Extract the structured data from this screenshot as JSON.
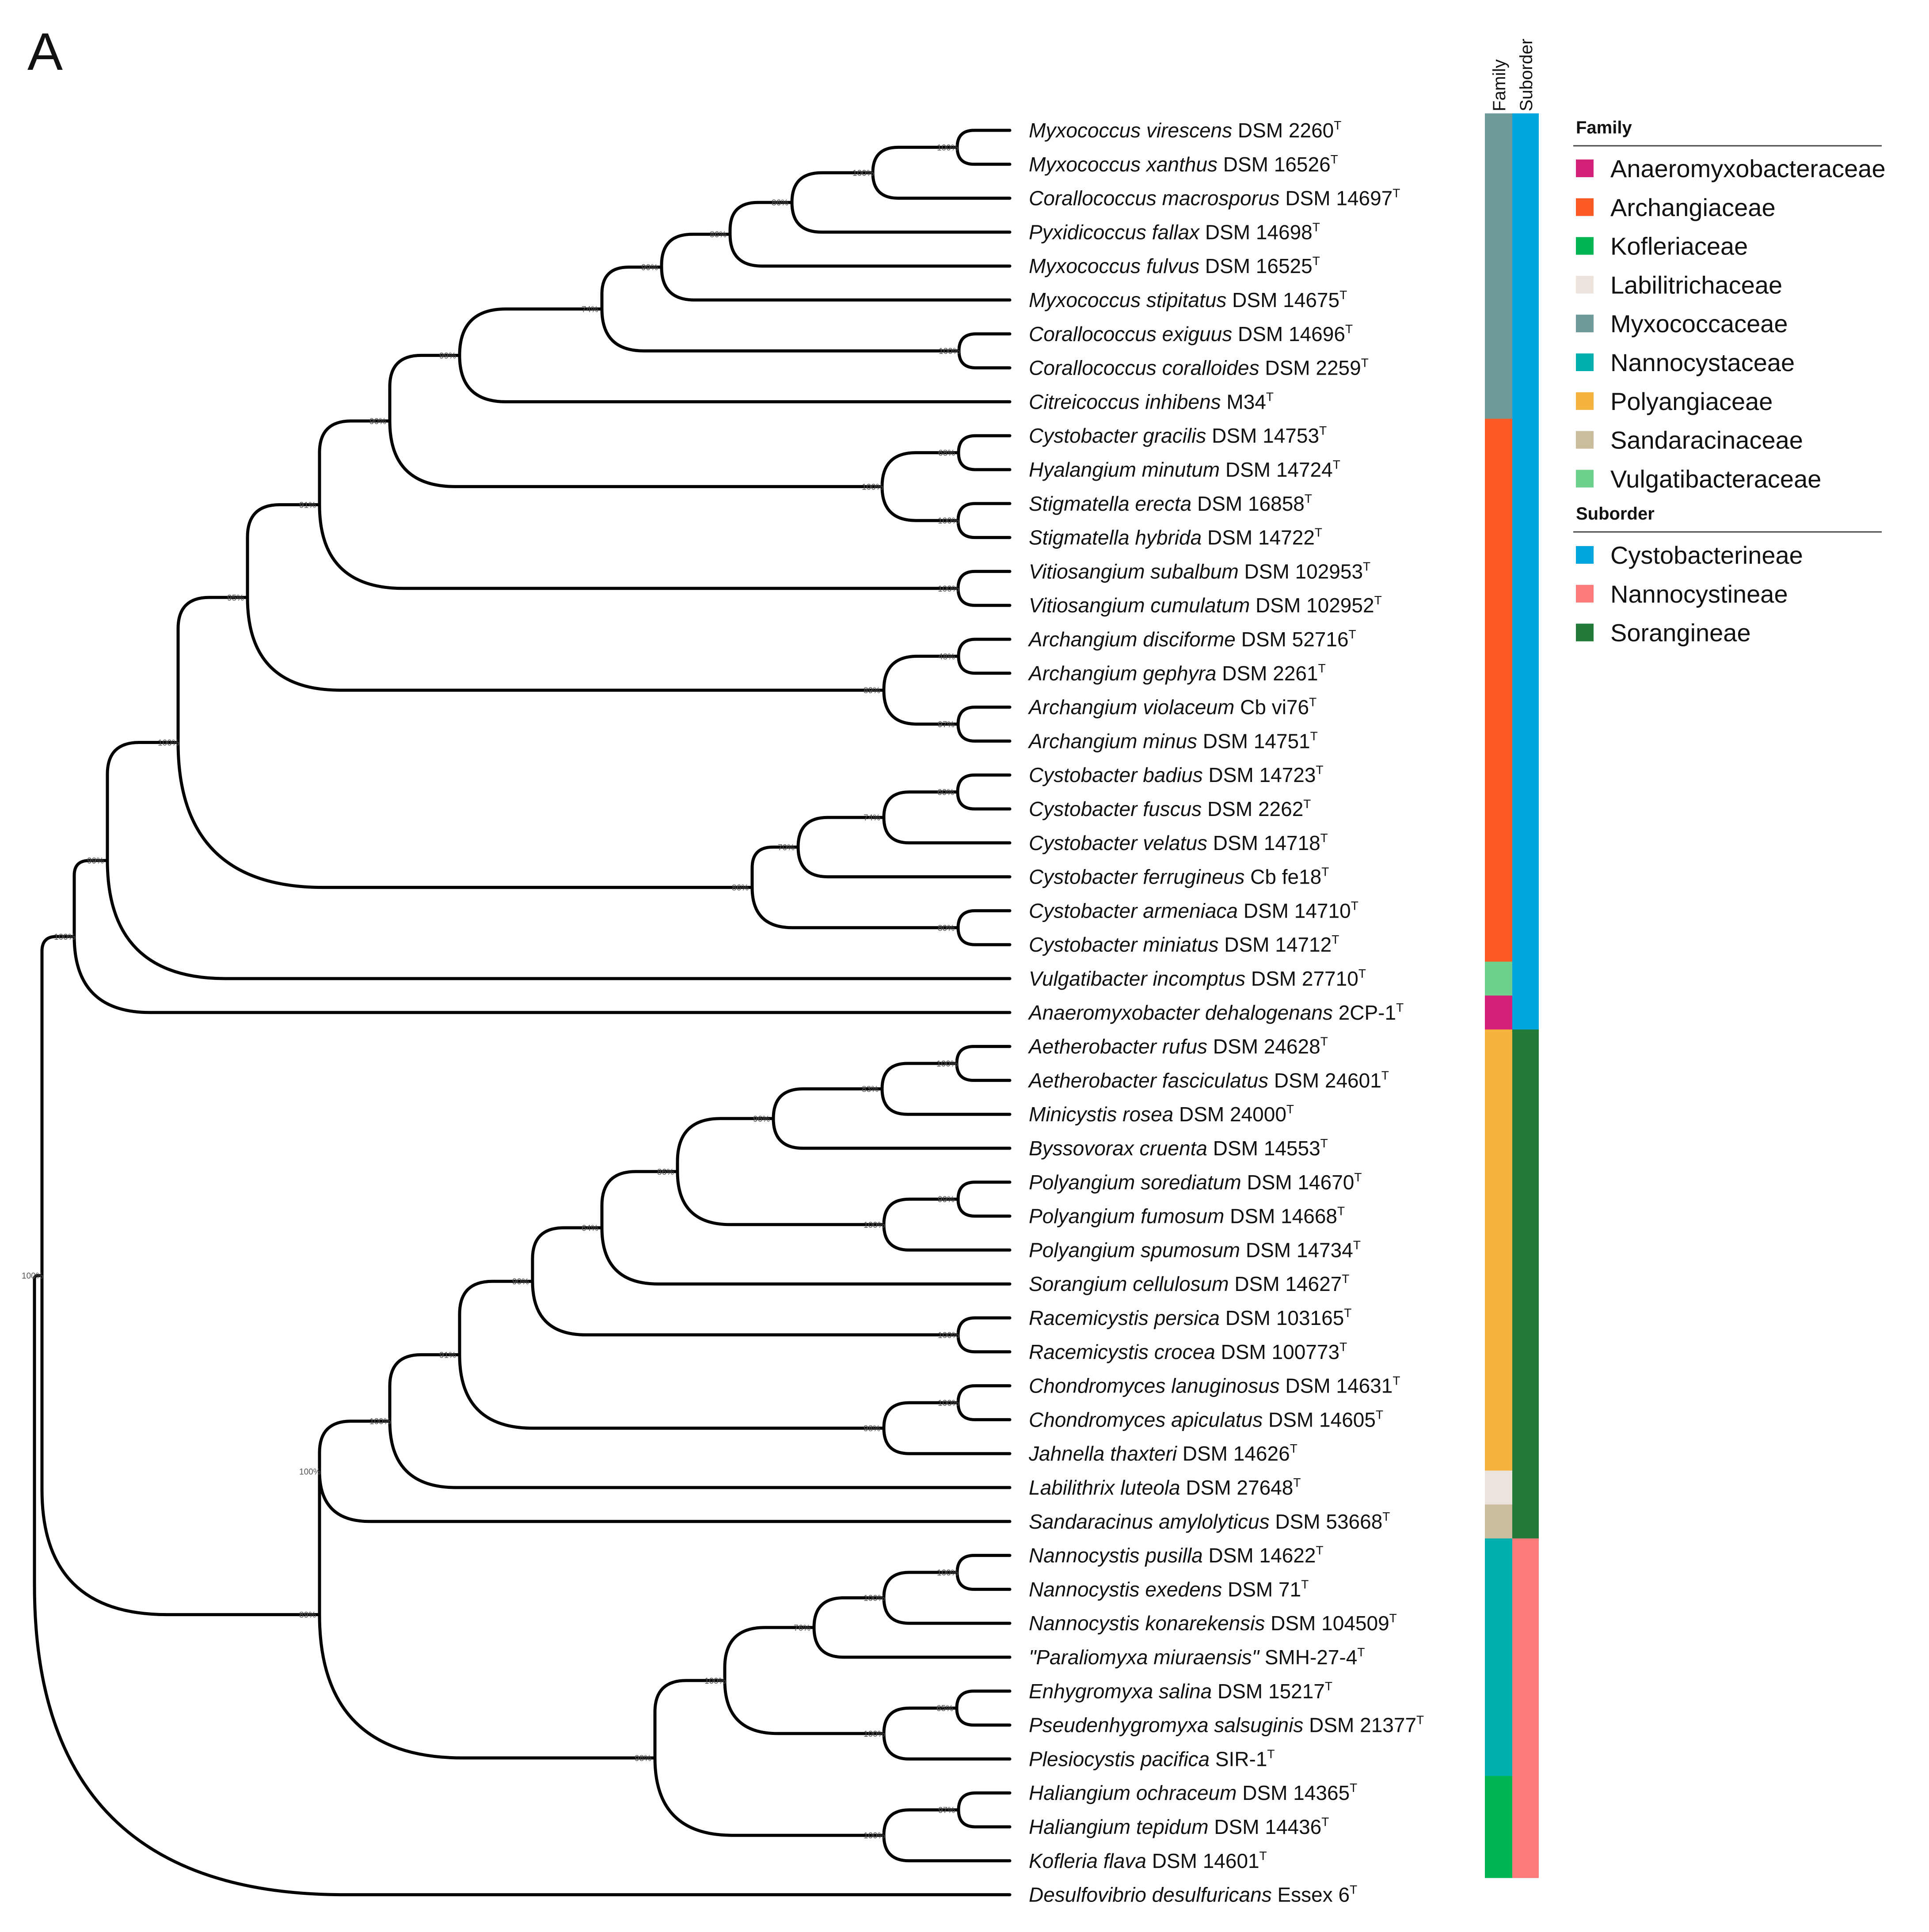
{
  "panel_label": "A",
  "column_headers": {
    "family": "Family",
    "suborder": "Suborder"
  },
  "legend": {
    "family_title": "Family",
    "families": [
      {
        "key": "Anaeromyxobacteraceae",
        "label": "Anaeromyxobacteraceae",
        "color": "#d3217a"
      },
      {
        "key": "Archangiaceae",
        "label": "Archangiaceae",
        "color": "#fb5a25"
      },
      {
        "key": "Kofleriaceae",
        "label": "Kofleriaceae",
        "color": "#00b552"
      },
      {
        "key": "Labilitrichaceae",
        "label": "Labilitrichaceae",
        "color": "#ebe3dc"
      },
      {
        "key": "Myxococcaceae",
        "label": "Myxococcaceae",
        "color": "#6e9a9a"
      },
      {
        "key": "Nannocystaceae",
        "label": "Nannocystaceae",
        "color": "#00afad"
      },
      {
        "key": "Polyangiaceae",
        "label": "Polyangiaceae",
        "color": "#f5b33f"
      },
      {
        "key": "Sandaracinaceae",
        "label": "Sandaracinaceae",
        "color": "#cbbd9c"
      },
      {
        "key": "Vulgatibacteraceae",
        "label": "Vulgatibacteraceae",
        "color": "#6dd08c"
      }
    ],
    "suborder_title": "Suborder",
    "suborders": [
      {
        "key": "Cystobacterineae",
        "label": "Cystobacterineae",
        "color": "#00a4df"
      },
      {
        "key": "Nannocystineae",
        "label": "Nannocystineae",
        "color": "#fd7a7a"
      },
      {
        "key": "Sorangineae",
        "label": "Sorangineae",
        "color": "#227a38"
      }
    ]
  },
  "label_colors": {
    "default": "#111111",
    "novel": "#e8357f",
    "highlight": "#1fb5cc"
  },
  "tree": {
    "taxa": [
      {
        "genus_species": "Myxococcus virescens",
        "strain": "DSM 2260",
        "sup": "T",
        "family": "Myxococcaceae",
        "suborder": "Cystobacterineae",
        "style": "default"
      },
      {
        "genus_species": "Myxococcus xanthus",
        "strain": "DSM 16526",
        "sup": "T",
        "family": "Myxococcaceae",
        "suborder": "Cystobacterineae",
        "style": "default"
      },
      {
        "genus_species": "Corallococcus macrosporus",
        "strain": "DSM 14697",
        "sup": "T",
        "family": "Myxococcaceae",
        "suborder": "Cystobacterineae",
        "style": "default"
      },
      {
        "genus_species": "Pyxidicoccus fallax",
        "strain": "DSM 14698",
        "sup": "T",
        "family": "Myxococcaceae",
        "suborder": "Cystobacterineae",
        "style": "default"
      },
      {
        "genus_species": "Myxococcus fulvus",
        "strain": "DSM 16525",
        "sup": "T",
        "family": "Myxococcaceae",
        "suborder": "Cystobacterineae",
        "style": "default"
      },
      {
        "genus_species": "Myxococcus stipitatus",
        "strain": "DSM 14675",
        "sup": "T",
        "family": "Myxococcaceae",
        "suborder": "Cystobacterineae",
        "style": "default"
      },
      {
        "genus_species": "Corallococcus exiguus",
        "strain": "DSM 14696",
        "sup": "T",
        "family": "Myxococcaceae",
        "suborder": "Cystobacterineae",
        "style": "default"
      },
      {
        "genus_species": "Corallococcus coralloides",
        "strain": "DSM 2259",
        "sup": "T",
        "family": "Myxococcaceae",
        "suborder": "Cystobacterineae",
        "style": "default"
      },
      {
        "genus_species": "Citreicoccus inhibens",
        "strain": "M34",
        "sup": "T",
        "family": "Myxococcaceae",
        "suborder": "Cystobacterineae",
        "style": "default"
      },
      {
        "genus_species": "Cystobacter gracilis",
        "strain": "DSM 14753",
        "sup": "T",
        "family": "Archangiaceae",
        "suborder": "Cystobacterineae",
        "style": "default"
      },
      {
        "genus_species": "Hyalangium minutum",
        "strain": "DSM 14724",
        "sup": "T",
        "family": "Archangiaceae",
        "suborder": "Cystobacterineae",
        "style": "default"
      },
      {
        "genus_species": "Stigmatella erecta",
        "strain": "DSM 16858",
        "sup": "T",
        "family": "Archangiaceae",
        "suborder": "Cystobacterineae",
        "style": "default"
      },
      {
        "genus_species": "Stigmatella hybrida",
        "strain": "DSM 14722",
        "sup": "T",
        "family": "Archangiaceae",
        "suborder": "Cystobacterineae",
        "style": "default"
      },
      {
        "genus_species": "Vitiosangium subalbum",
        "strain": "DSM 102953",
        "sup": "T",
        "family": "Archangiaceae",
        "suborder": "Cystobacterineae",
        "style": "default"
      },
      {
        "genus_species": "Vitiosangium cumulatum",
        "strain": "DSM 102952",
        "sup": "T",
        "family": "Archangiaceae",
        "suborder": "Cystobacterineae",
        "style": "default"
      },
      {
        "genus_species": "Archangium disciforme",
        "strain": "DSM 52716",
        "sup": "T",
        "family": "Archangiaceae",
        "suborder": "Cystobacterineae",
        "style": "default"
      },
      {
        "genus_species": "Archangium gephyra",
        "strain": "DSM 2261",
        "sup": "T",
        "family": "Archangiaceae",
        "suborder": "Cystobacterineae",
        "style": "default"
      },
      {
        "genus_species": "Archangium violaceum",
        "strain": "Cb vi76",
        "sup": "T",
        "family": "Archangiaceae",
        "suborder": "Cystobacterineae",
        "style": "default"
      },
      {
        "genus_species": "Archangium minus",
        "strain": "DSM 14751",
        "sup": "T",
        "family": "Archangiaceae",
        "suborder": "Cystobacterineae",
        "style": "default"
      },
      {
        "genus_species": "Cystobacter badius",
        "strain": "DSM 14723",
        "sup": "T",
        "family": "Archangiaceae",
        "suborder": "Cystobacterineae",
        "style": "default"
      },
      {
        "genus_species": "Cystobacter fuscus",
        "strain": "DSM 2262",
        "sup": "T",
        "family": "Archangiaceae",
        "suborder": "Cystobacterineae",
        "style": "default"
      },
      {
        "genus_species": "Cystobacter velatus",
        "strain": "DSM 14718",
        "sup": "T",
        "family": "Archangiaceae",
        "suborder": "Cystobacterineae",
        "style": "default"
      },
      {
        "genus_species": "Cystobacter ferrugineus",
        "strain": "Cb fe18",
        "sup": "T",
        "family": "Archangiaceae",
        "suborder": "Cystobacterineae",
        "style": "default"
      },
      {
        "genus_species": "Cystobacter armeniaca",
        "strain": "DSM 14710",
        "sup": "T",
        "family": "Archangiaceae",
        "suborder": "Cystobacterineae",
        "style": "default"
      },
      {
        "genus_species": "Cystobacter miniatus",
        "strain": "DSM 14712",
        "sup": "T",
        "family": "Archangiaceae",
        "suborder": "Cystobacterineae",
        "style": "default"
      },
      {
        "genus_species": "Vulgatibacter incomptus",
        "strain": "DSM 27710",
        "sup": "T",
        "family": "Vulgatibacteraceae",
        "suborder": "Cystobacterineae",
        "style": "default"
      },
      {
        "genus_species": "Anaeromyxobacter dehalogenans",
        "strain": "2CP-1",
        "sup": "T",
        "family": "Anaeromyxobacteraceae",
        "suborder": "Cystobacterineae",
        "style": "default"
      },
      {
        "genus_species": "Aetherobacter rufus",
        "strain": "DSM 24628",
        "sup": "T",
        "family": "Polyangiaceae",
        "suborder": "Sorangineae",
        "style": "default"
      },
      {
        "genus_species": "Aetherobacter fasciculatus",
        "strain": "DSM 24601",
        "sup": "T",
        "family": "Polyangiaceae",
        "suborder": "Sorangineae",
        "style": "default"
      },
      {
        "genus_species": "Minicystis rosea",
        "strain": "DSM 24000",
        "sup": "T",
        "family": "Polyangiaceae",
        "suborder": "Sorangineae",
        "style": "default"
      },
      {
        "genus_species": "Byssovorax cruenta",
        "strain": "DSM 14553",
        "sup": "T",
        "family": "Polyangiaceae",
        "suborder": "Sorangineae",
        "style": "default"
      },
      {
        "genus_species": "Polyangium sorediatum",
        "strain": "DSM 14670",
        "sup": "T",
        "family": "Polyangiaceae",
        "suborder": "Sorangineae",
        "style": "default"
      },
      {
        "genus_species": "Polyangium fumosum",
        "strain": "DSM 14668",
        "sup": "T",
        "family": "Polyangiaceae",
        "suborder": "Sorangineae",
        "style": "default"
      },
      {
        "genus_species": "Polyangium spumosum",
        "strain": "DSM 14734",
        "sup": "T",
        "family": "Polyangiaceae",
        "suborder": "Sorangineae",
        "style": "default"
      },
      {
        "genus_species": "Sorangium cellulosum",
        "strain": "DSM 14627",
        "sup": "T",
        "family": "Polyangiaceae",
        "suborder": "Sorangineae",
        "style": "default"
      },
      {
        "genus_species": "Racemicystis persica",
        "strain": "DSM 103165",
        "sup": "T",
        "family": "Polyangiaceae",
        "suborder": "Sorangineae",
        "style": "default"
      },
      {
        "genus_species": "Racemicystis crocea",
        "strain": "DSM 100773",
        "sup": "T",
        "family": "Polyangiaceae",
        "suborder": "Sorangineae",
        "style": "default"
      },
      {
        "genus_species": "Chondromyces lanuginosus",
        "strain": "DSM 14631",
        "sup": "T",
        "family": "Polyangiaceae",
        "suborder": "Sorangineae",
        "style": "default"
      },
      {
        "genus_species": "Chondromyces apiculatus",
        "strain": "DSM 14605",
        "sup": "T",
        "family": "Polyangiaceae",
        "suborder": "Sorangineae",
        "style": "default"
      },
      {
        "genus_species": "Jahnella thaxteri",
        "strain": "DSM 14626",
        "sup": "T",
        "family": "Polyangiaceae",
        "suborder": "Sorangineae",
        "style": "default"
      },
      {
        "genus_species": "Labilithrix luteola",
        "strain": "DSM 27648",
        "sup": "T",
        "family": "Labilitrichaceae",
        "suborder": "Sorangineae",
        "style": "default"
      },
      {
        "genus_species": "Sandaracinus amylolyticus",
        "strain": "DSM 53668",
        "sup": "T",
        "family": "Sandaracinaceae",
        "suborder": "Sorangineae",
        "style": "default"
      },
      {
        "genus_species": "Nannocystis pusilla",
        "strain": "DSM 14622",
        "sup": "T",
        "family": "Nannocystaceae",
        "suborder": "Nannocystineae",
        "style": "default"
      },
      {
        "genus_species": "Nannocystis exedens",
        "strain": "DSM 71",
        "sup": "T",
        "family": "Nannocystaceae",
        "suborder": "Nannocystineae",
        "style": "default"
      },
      {
        "genus_species": "Nannocystis konarekensis",
        "strain": "DSM 104509",
        "sup": "T",
        "family": "Nannocystaceae",
        "suborder": "Nannocystineae",
        "style": "default"
      },
      {
        "genus_species": "\"Paraliomyxa miuraensis\"",
        "strain": "SMH-27-4",
        "sup": "T",
        "family": "Nannocystaceae",
        "suborder": "Nannocystineae",
        "style": "novel"
      },
      {
        "genus_species": "Enhygromyxa salina",
        "strain": "DSM 15217",
        "sup": "T",
        "family": "Nannocystaceae",
        "suborder": "Nannocystineae",
        "style": "highlight"
      },
      {
        "genus_species": "Pseudenhygromyxa salsuginis",
        "strain": "DSM 21377",
        "sup": "T",
        "family": "Nannocystaceae",
        "suborder": "Nannocystineae",
        "style": "highlight"
      },
      {
        "genus_species": "Plesiocystis pacifica",
        "strain": "SIR-1",
        "sup": "T",
        "family": "Nannocystaceae",
        "suborder": "Nannocystineae",
        "style": "highlight"
      },
      {
        "genus_species": "Haliangium ochraceum",
        "strain": "DSM 14365",
        "sup": "T",
        "family": "Kofleriaceae",
        "suborder": "Nannocystineae",
        "style": "default"
      },
      {
        "genus_species": "Haliangium tepidum",
        "strain": "DSM 14436",
        "sup": "T",
        "family": "Kofleriaceae",
        "suborder": "Nannocystineae",
        "style": "default"
      },
      {
        "genus_species": "Kofleria flava",
        "strain": "DSM 14601",
        "sup": "T",
        "family": "Kofleriaceae",
        "suborder": "Nannocystineae",
        "style": "default"
      },
      {
        "genus_species": "Desulfovibrio desulfuricans",
        "strain": "Essex 6",
        "sup": "T",
        "family": null,
        "suborder": null,
        "style": "default"
      }
    ],
    "nodes": [
      {
        "id": "n1",
        "children": [
          0,
          1
        ],
        "support": "100%"
      },
      {
        "id": "n2",
        "children": [
          "n1",
          2
        ],
        "support": "100%"
      },
      {
        "id": "n3",
        "children": [
          "n2",
          3
        ],
        "support": "86%"
      },
      {
        "id": "n4",
        "children": [
          "n3",
          4
        ],
        "support": "86%"
      },
      {
        "id": "n5",
        "children": [
          "n4",
          5
        ],
        "support": "99%"
      },
      {
        "id": "n6",
        "children": [
          6,
          7
        ],
        "support": "100%"
      },
      {
        "id": "n7",
        "children": [
          "n5",
          "n6"
        ],
        "support": "74%"
      },
      {
        "id": "n8",
        "children": [
          "n7",
          8
        ],
        "support": "99%"
      },
      {
        "id": "n9",
        "children": [
          9,
          10
        ],
        "support": "68%"
      },
      {
        "id": "n10",
        "children": [
          11,
          12
        ],
        "support": "100%"
      },
      {
        "id": "n11",
        "children": [
          "n9",
          "n10"
        ],
        "support": "100%"
      },
      {
        "id": "n12",
        "children": [
          "n8",
          "n11"
        ],
        "support": "90%"
      },
      {
        "id": "n13",
        "children": [
          13,
          14
        ],
        "support": "100%"
      },
      {
        "id": "n14",
        "children": [
          "n12",
          "n13"
        ],
        "support": "91%"
      },
      {
        "id": "n15",
        "children": [
          15,
          16
        ],
        "support": "48%"
      },
      {
        "id": "n16",
        "children": [
          17,
          18
        ],
        "support": "97%"
      },
      {
        "id": "n17",
        "children": [
          "n15",
          "n16"
        ],
        "support": "89%"
      },
      {
        "id": "n18",
        "children": [
          "n14",
          "n17"
        ],
        "support": "95%"
      },
      {
        "id": "n19",
        "children": [
          19,
          20
        ],
        "support": "60%"
      },
      {
        "id": "n20",
        "children": [
          "n19",
          21
        ],
        "support": "74%"
      },
      {
        "id": "n21",
        "children": [
          "n20",
          22
        ],
        "support": "70%"
      },
      {
        "id": "n22",
        "children": [
          23,
          24
        ],
        "support": "80%"
      },
      {
        "id": "n23",
        "children": [
          "n21",
          "n22"
        ],
        "support": "86%"
      },
      {
        "id": "n24",
        "children": [
          "n18",
          "n23"
        ],
        "support": "100%"
      },
      {
        "id": "n25",
        "children": [
          "n24",
          25
        ],
        "support": "99%"
      },
      {
        "id": "n26",
        "children": [
          "n25",
          26
        ],
        "support": "100%"
      },
      {
        "id": "n27",
        "children": [
          27,
          28
        ],
        "support": "100%"
      },
      {
        "id": "n28",
        "children": [
          "n27",
          29
        ],
        "support": "83%"
      },
      {
        "id": "n29",
        "children": [
          "n28",
          30
        ],
        "support": "96%"
      },
      {
        "id": "n30",
        "children": [
          31,
          32
        ],
        "support": "99%"
      },
      {
        "id": "n31",
        "children": [
          "n30",
          33
        ],
        "support": "100%"
      },
      {
        "id": "n32",
        "children": [
          "n29",
          "n31"
        ],
        "support": "86%"
      },
      {
        "id": "n33",
        "children": [
          "n32",
          34
        ],
        "support": "64%"
      },
      {
        "id": "n34",
        "children": [
          35,
          36
        ],
        "support": "100%"
      },
      {
        "id": "n35",
        "children": [
          "n33",
          "n34"
        ],
        "support": "90%"
      },
      {
        "id": "n36",
        "children": [
          37,
          38
        ],
        "support": "100%"
      },
      {
        "id": "n37",
        "children": [
          "n36",
          39
        ],
        "support": "98%"
      },
      {
        "id": "n38",
        "children": [
          "n35",
          "n37"
        ],
        "support": "91%"
      },
      {
        "id": "n39",
        "children": [
          "n38",
          40
        ],
        "support": "100%"
      },
      {
        "id": "n40",
        "children": [
          "n39",
          41
        ],
        "support": "100%"
      },
      {
        "id": "n41",
        "children": [
          42,
          43
        ],
        "support": "100%"
      },
      {
        "id": "n42",
        "children": [
          "n41",
          44
        ],
        "support": "100%"
      },
      {
        "id": "n43",
        "children": [
          "n42",
          45
        ],
        "support": "76%"
      },
      {
        "id": "n44",
        "children": [
          46,
          47
        ],
        "support": "65%"
      },
      {
        "id": "n45",
        "children": [
          "n44",
          48
        ],
        "support": "100%"
      },
      {
        "id": "n46",
        "children": [
          "n43",
          "n45"
        ],
        "support": "100%"
      },
      {
        "id": "n47",
        "children": [
          49,
          50
        ],
        "support": "97%"
      },
      {
        "id": "n48",
        "children": [
          "n47",
          51
        ],
        "support": "100%"
      },
      {
        "id": "n49",
        "children": [
          "n46",
          "n48"
        ],
        "support": "98%"
      },
      {
        "id": "n50",
        "children": [
          "n40",
          "n49"
        ],
        "support": "89%"
      },
      {
        "id": "n51",
        "children": [
          "n26",
          "n50"
        ],
        "support": "100%"
      },
      {
        "id": "root",
        "children": [
          "n51",
          52
        ],
        "support": ""
      }
    ]
  }
}
